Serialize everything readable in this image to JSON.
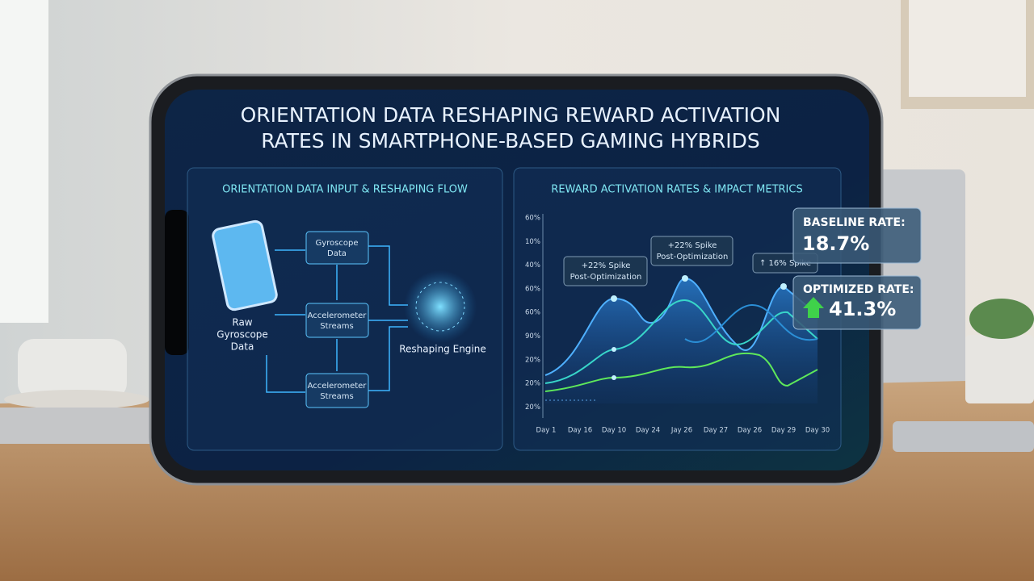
{
  "header": {
    "title_line1": "ORIENTATION DATA RESHAPING REWARD ACTIVATION",
    "title_line2": "RATES IN SMARTPHONE-BASED GAMING HYBRIDS"
  },
  "flow_panel": {
    "title": "ORIENTATION DATA INPUT & RESHAPING FLOW",
    "source": {
      "line1": "Raw",
      "line2": "Gyroscope",
      "line3": "Data"
    },
    "nodes": [
      {
        "line1": "Gyroscope",
        "line2": "Data"
      },
      {
        "line1": "Accelerometer",
        "line2": "Streams"
      },
      {
        "line1": "Accelerometer",
        "line2": "Streams"
      }
    ],
    "engine": "Reshaping Engine"
  },
  "metrics_panel": {
    "title": "REWARD ACTIVATION RATES & IMPACT METRICS",
    "y_labels": [
      "60%",
      "10%",
      "40%",
      "60%",
      "60%",
      "90%",
      "20%",
      "20%",
      "20%"
    ],
    "x_labels": [
      "Day 1",
      "Day 16",
      "Day 10",
      "Day 24",
      "Jay 26",
      "Day 27",
      "Day 26",
      "Day 29",
      "Day 30"
    ],
    "annotations": [
      {
        "line1": "+22% Spike",
        "line2": "Post-Optimization"
      },
      {
        "line1": "+22% Spike",
        "line2": "Post-Optimization"
      },
      {
        "line1": "↑ 16% Spike"
      }
    ]
  },
  "cards": [
    {
      "label": "BASELINE RATE:",
      "value": "18.7%"
    },
    {
      "label": "OPTIMIZED RATE:",
      "value": "41.3%"
    }
  ]
}
